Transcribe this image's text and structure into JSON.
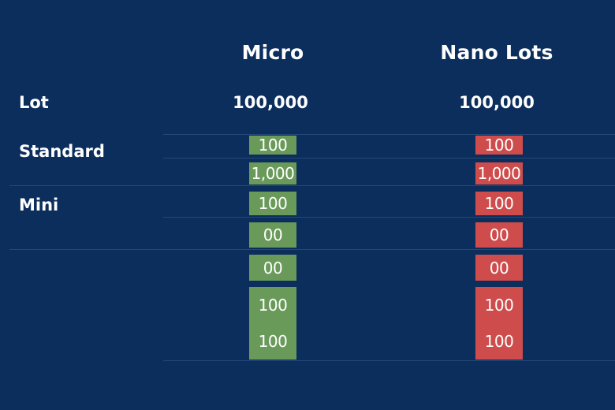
{
  "header": {
    "col1": "Micro",
    "col2": "Nano Lots"
  },
  "rows": {
    "lot": {
      "label": "Lot",
      "col1": "100,000",
      "col2": "100,000"
    },
    "standard": {
      "label": "Standard"
    },
    "mini": {
      "label": "Mini"
    }
  },
  "micro_cells": [
    "100",
    "1,000",
    "100",
    "00",
    "00",
    "100",
    "100"
  ],
  "nano_cells": [
    "100",
    "1,000",
    "100",
    "00",
    "00",
    "100",
    "100"
  ],
  "colors": {
    "background": "#0c2e5c",
    "micro_cell": "#6a9a5a",
    "nano_cell": "#cf4c4c",
    "rule": "#25497a"
  }
}
